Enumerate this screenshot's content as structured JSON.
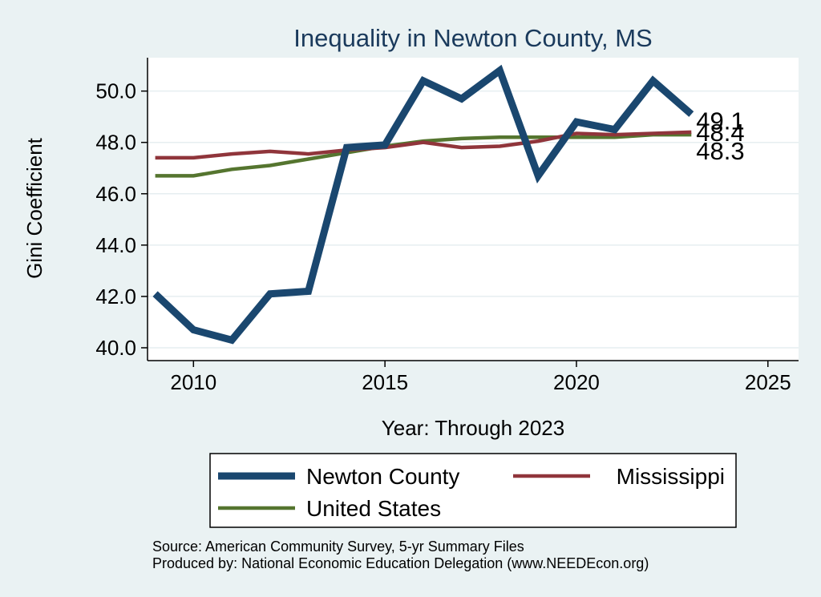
{
  "chart_data": {
    "type": "line",
    "title": "Inequality in Newton County, MS",
    "xlabel": "Year: Through 2023",
    "ylabel": "Gini Coefficient",
    "xlim": [
      2008.8,
      2025.8
    ],
    "ylim": [
      39.5,
      51.3
    ],
    "x_ticks": [
      2010,
      2015,
      2020,
      2025
    ],
    "y_ticks": [
      40.0,
      42.0,
      44.0,
      46.0,
      48.0,
      50.0
    ],
    "y_tick_labels": [
      "40.0",
      "42.0",
      "44.0",
      "46.0",
      "48.0",
      "50.0"
    ],
    "grid": true,
    "legend_position": "bottom",
    "x": [
      2009,
      2010,
      2011,
      2012,
      2013,
      2014,
      2015,
      2016,
      2017,
      2018,
      2019,
      2020,
      2021,
      2022,
      2023
    ],
    "series": [
      {
        "name": "Newton County",
        "color": "#1a476f",
        "values": [
          42.1,
          40.7,
          40.3,
          42.1,
          42.2,
          47.8,
          47.9,
          50.4,
          49.7,
          50.8,
          46.7,
          48.8,
          48.5,
          50.4,
          49.1
        ],
        "end_label": "49.1"
      },
      {
        "name": "Mississippi",
        "color": "#90353b",
        "values": [
          47.4,
          47.4,
          47.55,
          47.65,
          47.55,
          47.7,
          47.8,
          48.0,
          47.8,
          47.85,
          48.05,
          48.35,
          48.3,
          48.35,
          48.4
        ],
        "end_label": "48.4"
      },
      {
        "name": "United States",
        "color": "#55752f",
        "values": [
          46.7,
          46.7,
          46.95,
          47.1,
          47.35,
          47.6,
          47.85,
          48.05,
          48.15,
          48.2,
          48.2,
          48.2,
          48.2,
          48.3,
          48.3
        ],
        "end_label": "48.3"
      }
    ]
  },
  "source_note": "Source: American Community Survey, 5-yr Summary Files",
  "produced_note": "Produced by: National Economic Education Delegation (www.NEEDEcon.org)"
}
